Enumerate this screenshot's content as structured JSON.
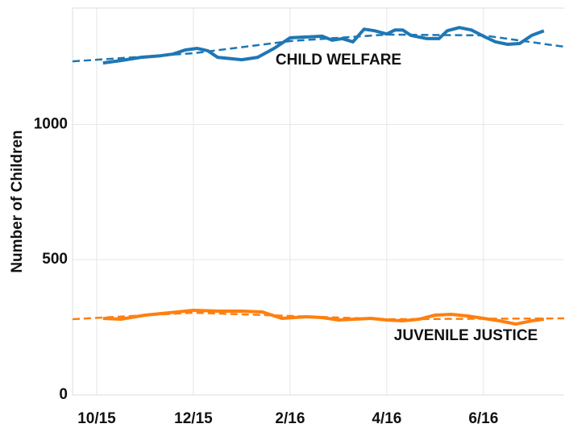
{
  "chart_data": {
    "type": "line",
    "y_label": "Number of Children",
    "xlim": [
      -0.5,
      9.67
    ],
    "ylim": [
      0,
      1430
    ],
    "xticks": [
      {
        "value": 0,
        "label": "10/15"
      },
      {
        "value": 2,
        "label": "12/15"
      },
      {
        "value": 4,
        "label": "2/16"
      },
      {
        "value": 6,
        "label": "4/16"
      },
      {
        "value": 8,
        "label": "6/16"
      }
    ],
    "yticks": [
      0,
      500,
      1000
    ],
    "grid": true,
    "series": [
      {
        "name": "CHILD WELFARE",
        "color": "#1f77b4",
        "x": [
          0.13,
          0.5,
          0.92,
          1.33,
          1.58,
          1.83,
          2.08,
          2.3,
          2.5,
          3.0,
          3.33,
          3.67,
          4.0,
          4.33,
          4.67,
          4.87,
          5.08,
          5.3,
          5.53,
          5.75,
          6.0,
          6.17,
          6.33,
          6.5,
          6.83,
          7.08,
          7.25,
          7.5,
          7.75,
          8.0,
          8.25,
          8.5,
          8.75,
          9.0,
          9.25
        ],
        "values": [
          1227,
          1236,
          1248,
          1254,
          1260,
          1275,
          1281,
          1272,
          1248,
          1239,
          1248,
          1281,
          1320,
          1323,
          1326,
          1311,
          1317,
          1305,
          1352,
          1346,
          1334,
          1349,
          1349,
          1329,
          1317,
          1317,
          1346,
          1358,
          1349,
          1326,
          1305,
          1296,
          1299,
          1329,
          1346
        ],
        "trend_x": [
          -0.5,
          2.0,
          4.0,
          6.0,
          8.0,
          9.67
        ],
        "trend_values": [
          1233,
          1263,
          1308,
          1332,
          1329,
          1287
        ]
      },
      {
        "name": "JUVENILE JUSTICE",
        "color": "#ff7f0e",
        "x": [
          0.13,
          0.5,
          1.0,
          1.5,
          2.0,
          2.5,
          3.0,
          3.42,
          3.83,
          4.33,
          4.67,
          5.0,
          5.33,
          5.67,
          6.0,
          6.33,
          6.67,
          7.0,
          7.33,
          7.67,
          8.0,
          8.33,
          8.67,
          9.0,
          9.25
        ],
        "values": [
          283,
          280,
          295,
          304,
          313,
          310,
          310,
          307,
          283,
          289,
          286,
          277,
          280,
          283,
          277,
          274,
          280,
          295,
          298,
          292,
          283,
          274,
          262,
          274,
          280
        ],
        "trend_x": [
          -0.5,
          2.0,
          6.0,
          9.67
        ],
        "trend_values": [
          280,
          304,
          280,
          283
        ]
      }
    ]
  }
}
